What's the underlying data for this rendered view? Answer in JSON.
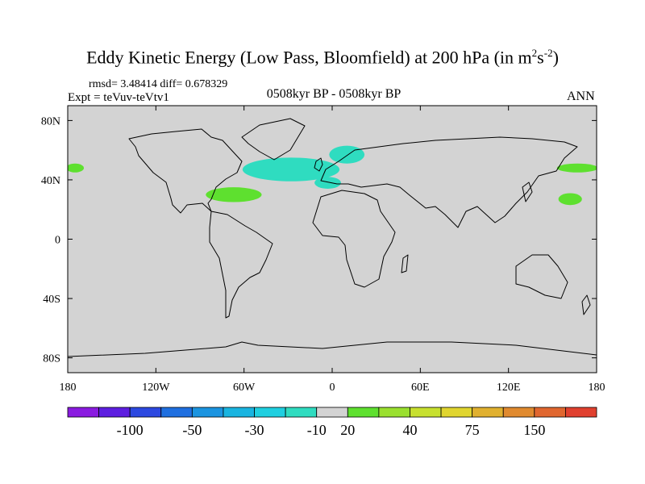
{
  "title": {
    "prefix": "Eddy Kinetic Energy (Low Pass, Bloomfield) at 200 hPa (in m",
    "sup1": "2",
    "mid": "s",
    "sup2": "-2",
    "suffix": ")"
  },
  "stats": "rmsd= 3.48414 diff= 0.678329",
  "experiment": "Expt = teVuv-teVtv1",
  "period": "0508kyr BP - 0508kyr BP",
  "season": "ANN",
  "map": {
    "projection": "cylindrical-equidistant",
    "lon_range": [
      -180,
      180
    ],
    "lat_range": [
      -90,
      90
    ],
    "lon_ticks": [
      {
        "value": -180,
        "label": "180"
      },
      {
        "value": -120,
        "label": "120W"
      },
      {
        "value": -60,
        "label": "60W"
      },
      {
        "value": 0,
        "label": "0"
      },
      {
        "value": 60,
        "label": "60E"
      },
      {
        "value": 120,
        "label": "120E"
      },
      {
        "value": 180,
        "label": "180"
      }
    ],
    "lat_ticks": [
      {
        "value": 80,
        "label": "80N"
      },
      {
        "value": 40,
        "label": "40N"
      },
      {
        "value": 0,
        "label": "0"
      },
      {
        "value": -40,
        "label": "40S"
      },
      {
        "value": -80,
        "label": "80S"
      }
    ],
    "background_color": "#d3d3d3",
    "coast_color": "#000000",
    "anomaly_regions": [
      {
        "name": "north-atlantic-negative",
        "color": "#2fdcc0",
        "lon_center": -28,
        "lat_center": 47,
        "lon_halfwidth": 33,
        "lat_halfwidth": 8
      },
      {
        "name": "scandinavia-negative",
        "color": "#2fdcc0",
        "lon_center": 10,
        "lat_center": 57,
        "lon_halfwidth": 12,
        "lat_halfwidth": 6
      },
      {
        "name": "mediterranean-negative",
        "color": "#2fdcc0",
        "lon_center": -3,
        "lat_center": 38,
        "lon_halfwidth": 9,
        "lat_halfwidth": 4
      },
      {
        "name": "subtropical-atlantic-positive",
        "color": "#5ee02f",
        "lon_center": -67,
        "lat_center": 30,
        "lon_halfwidth": 19,
        "lat_halfwidth": 5
      },
      {
        "name": "north-pacific-west-positive",
        "color": "#5ee02f",
        "lon_center": 167,
        "lat_center": 48,
        "lon_halfwidth": 14,
        "lat_halfwidth": 3
      },
      {
        "name": "north-pacific-east-positive",
        "color": "#5ee02f",
        "lon_center": -175,
        "lat_center": 48,
        "lon_halfwidth": 6,
        "lat_halfwidth": 3
      },
      {
        "name": "subtropical-pacific-positive",
        "color": "#5ee02f",
        "lon_center": 162,
        "lat_center": 27,
        "lon_halfwidth": 8,
        "lat_halfwidth": 4
      }
    ]
  },
  "colorbar": {
    "colors": [
      "#8a1be0",
      "#5d1ee0",
      "#2c48e0",
      "#1f6fe0",
      "#1b94e0",
      "#19b4e0",
      "#1fcfe0",
      "#2fdcc0",
      "#d3d3d3",
      "#5ee02f",
      "#9ae02f",
      "#c7e02f",
      "#e0d52f",
      "#e0b02f",
      "#e08a2f",
      "#e0662f",
      "#e0402f"
    ],
    "labels": [
      "-100",
      "-50",
      "-30",
      "-10",
      "20",
      "40",
      "75",
      "150"
    ]
  }
}
